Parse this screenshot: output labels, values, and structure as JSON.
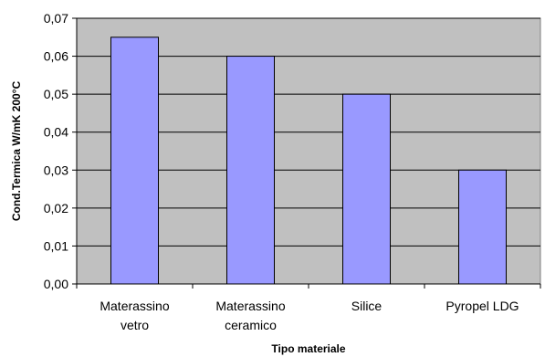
{
  "chart_data": {
    "type": "bar",
    "categories": [
      [
        "Materassino",
        "vetro"
      ],
      [
        "Materassino",
        "ceramico"
      ],
      [
        "Silice"
      ],
      [
        "Pyropel LDG"
      ]
    ],
    "values": [
      0.065,
      0.06,
      0.05,
      0.03
    ],
    "title": "",
    "xlabel": "Tipo materiale",
    "ylabel": "Cond.Termica W/mK 200°C",
    "ylim": [
      0,
      0.07
    ],
    "yticks": [
      "0,00",
      "0,01",
      "0,02",
      "0,03",
      "0,04",
      "0,05",
      "0,06",
      "0,07"
    ],
    "grid": true,
    "legend": "none",
    "colors": {
      "plot_background": "#c0c0c0",
      "bar_fill": "#9999ff",
      "bar_stroke": "#000000",
      "gridline": "#000000"
    }
  }
}
